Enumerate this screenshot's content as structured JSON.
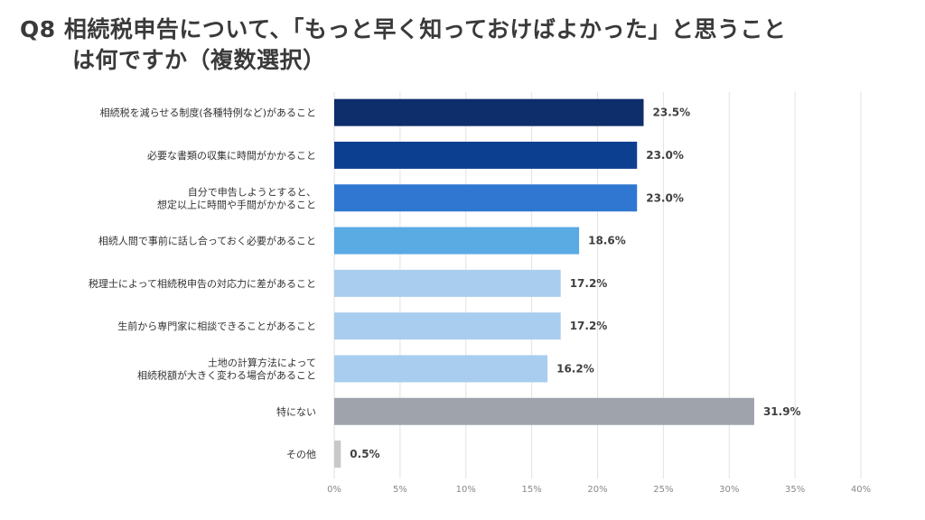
{
  "title": {
    "line1": "Q8  相続税申告について、「もっと早く知っておけばよかった」と思うこと",
    "line2": "は何ですか（複数選択）"
  },
  "chart_data": {
    "type": "bar",
    "orientation": "horizontal",
    "categories": [
      [
        "相続税を減らせる制度(各種特例など)があること"
      ],
      [
        "必要な書類の収集に時間がかかること"
      ],
      [
        "自分で申告しようとすると、",
        "想定以上に時間や手間がかかること"
      ],
      [
        "相続人間で事前に話し合っておく必要があること"
      ],
      [
        "税理士によって相続税申告の対応力に差があること"
      ],
      [
        "生前から専門家に相談できることがあること"
      ],
      [
        "土地の計算方法によって",
        "相続税額が大きく変わる場合があること"
      ],
      [
        "特にない"
      ],
      [
        "その他"
      ]
    ],
    "values": [
      23.5,
      23.0,
      23.0,
      18.6,
      17.2,
      17.2,
      16.2,
      31.9,
      0.5
    ],
    "value_labels": [
      "23.5%",
      "23.0%",
      "23.0%",
      "18.6%",
      "17.2%",
      "17.2%",
      "16.2%",
      "31.9%",
      "0.5%"
    ],
    "bar_colors": [
      "#0d2d6b",
      "#0d3f91",
      "#2f77d1",
      "#5aaae4",
      "#a9cdee",
      "#a9cdee",
      "#a9cdee",
      "#9ea3ac",
      "#c8c8c8"
    ],
    "xlim": [
      0,
      40
    ],
    "xticks": [
      0,
      5,
      10,
      15,
      20,
      25,
      30,
      35,
      40
    ],
    "xtick_labels": [
      "0%",
      "5%",
      "10%",
      "15%",
      "20%",
      "25%",
      "30%",
      "35%",
      "40%"
    ],
    "grid": true,
    "legend": "none"
  }
}
